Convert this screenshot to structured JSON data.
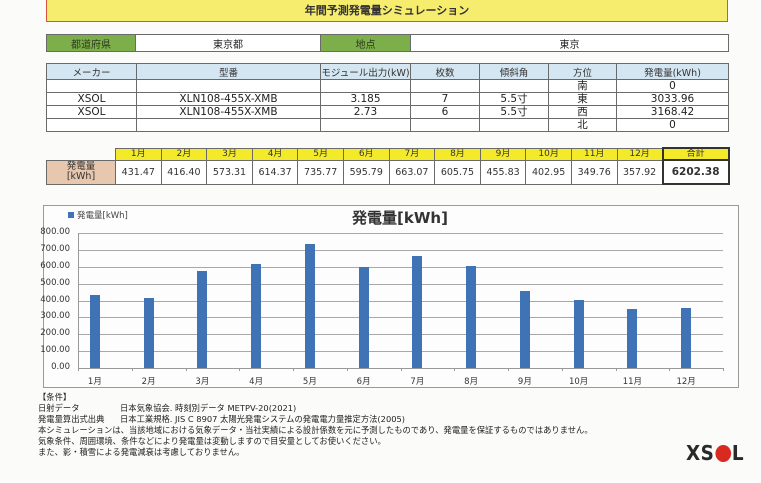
{
  "title": "年間予測発電量シミュレーション",
  "location": {
    "prefecture_label": "都道府県",
    "prefecture_value": "東京都",
    "site_label": "地点",
    "site_value": "東京"
  },
  "module_table": {
    "headers": [
      "メーカー",
      "型番",
      "モジュール出力(kW)",
      "枚数",
      "傾斜角",
      "方位",
      "発電量(kWh)"
    ],
    "rows": [
      {
        "maker": "",
        "model": "",
        "output": "",
        "count": "",
        "tilt": "",
        "direction": "南",
        "generation": "0"
      },
      {
        "maker": "XSOL",
        "model": "XLN108-455X-XMB",
        "output": "3.185",
        "count": "7",
        "tilt": "5.5寸",
        "direction": "東",
        "generation": "3033.96"
      },
      {
        "maker": "XSOL",
        "model": "XLN108-455X-XMB",
        "output": "2.73",
        "count": "6",
        "tilt": "5.5寸",
        "direction": "西",
        "generation": "3168.42"
      },
      {
        "maker": "",
        "model": "",
        "output": "",
        "count": "",
        "tilt": "",
        "direction": "北",
        "generation": "0"
      }
    ]
  },
  "monthly_table": {
    "row_label_line1": "発電量",
    "row_label_line2": "[kWh]",
    "months": [
      "1月",
      "2月",
      "3月",
      "4月",
      "5月",
      "6月",
      "7月",
      "8月",
      "9月",
      "10月",
      "11月",
      "12月"
    ],
    "values": [
      "431.47",
      "416.40",
      "573.31",
      "614.37",
      "735.77",
      "595.79",
      "663.07",
      "605.75",
      "455.83",
      "402.95",
      "349.76",
      "357.92"
    ],
    "total_label": "合計",
    "total_value": "6202.38"
  },
  "chart_data": {
    "type": "bar",
    "title": "発電量[kWh]",
    "legend": [
      "発電量[kWh]"
    ],
    "legend_position": "top-left",
    "categories": [
      "1月",
      "2月",
      "3月",
      "4月",
      "5月",
      "6月",
      "7月",
      "8月",
      "9月",
      "10月",
      "11月",
      "12月"
    ],
    "series": [
      {
        "name": "発電量[kWh]",
        "values": [
          431.47,
          416.4,
          573.31,
          614.37,
          735.77,
          595.79,
          663.07,
          605.75,
          455.83,
          402.95,
          349.76,
          357.92
        ],
        "color": "#3f73b5"
      }
    ],
    "yticks": [
      "0.00",
      "100.00",
      "200.00",
      "300.00",
      "400.00",
      "500.00",
      "600.00",
      "700.00",
      "800.00"
    ],
    "ylim": [
      0,
      800
    ],
    "xlabel": "",
    "ylabel": "",
    "grid": true
  },
  "conditions": {
    "heading": "【条件】",
    "solar_data_label": "日射データ",
    "solar_data_value": "日本気象協会. 時刻別データ METPV-20(2021)",
    "formula_label": "発電量算出式出典",
    "formula_value": "日本工業規格. JIS C 8907 太陽光発電システムの発電電力量推定方法(2005)",
    "note1": "本シミュレーションは、当該地域における気象データ・当社実績による設計係数を元に予測したものであり、発電量を保証するものではありません。",
    "note2": "気象条件、周囲環境、条件などにより発電量は変動しますので目安量としてお使いください。",
    "note3": "また、影・積雪による発電減衰は考慮しておりません。"
  },
  "logo": {
    "left": "XS",
    "right": "L",
    "dot_color": "#d92a22"
  }
}
